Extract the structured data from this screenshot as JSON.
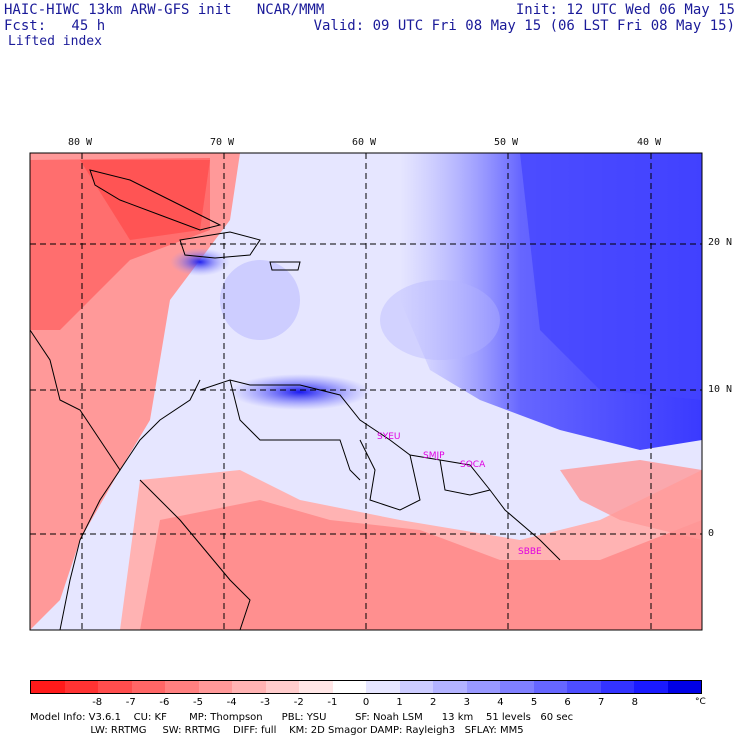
{
  "header": {
    "model_line": "HAIC-HIWC 13km ARW-GFS init   NCAR/MMM",
    "init_line": "Init: 12 UTC Wed 06 May 15",
    "fcst_line": "Fcst:   45 h",
    "valid_line": "Valid: 09 UTC Fri 08 May 15 (06 LST Fri 08 May 15)",
    "field_line": "Lifted index"
  },
  "map": {
    "lon_labels": [
      "80 W",
      "70 W",
      "60 W",
      "50 W",
      "40 W"
    ],
    "lat_labels": [
      "20 N",
      "10 N",
      "0"
    ],
    "stations": [
      "SYEU",
      "SMJP",
      "SOCA",
      "SBBE"
    ]
  },
  "colorbar": {
    "colors": [
      "#ff1a1a",
      "#ff3333",
      "#ff4d4d",
      "#ff6666",
      "#ff8080",
      "#ff9999",
      "#ffb3b3",
      "#ffcccc",
      "#ffe6e6",
      "#ffffff",
      "#e6e6ff",
      "#ccccff",
      "#b3b3ff",
      "#9999ff",
      "#8080ff",
      "#6666ff",
      "#4d4dff",
      "#3333ff",
      "#1a1aff",
      "#0000e6"
    ],
    "tick_labels": [
      "-8",
      "-7",
      "-6",
      "-5",
      "-4",
      "-3",
      "-2",
      "-1",
      "0",
      "1",
      "2",
      "3",
      "4",
      "5",
      "6",
      "7",
      "8"
    ],
    "unit": "°C"
  },
  "footer": {
    "line1": "Model Info: V3.6.1    CU: KF       MP: Thompson      PBL: YSU         SF: Noah LSM      13 km    51 levels   60 sec",
    "line2": "                   LW: RRTMG     SW: RRTMG    DIFF: full    KM: 2D Smagor DAMP: Rayleigh3   SFLAY: MM5"
  }
}
